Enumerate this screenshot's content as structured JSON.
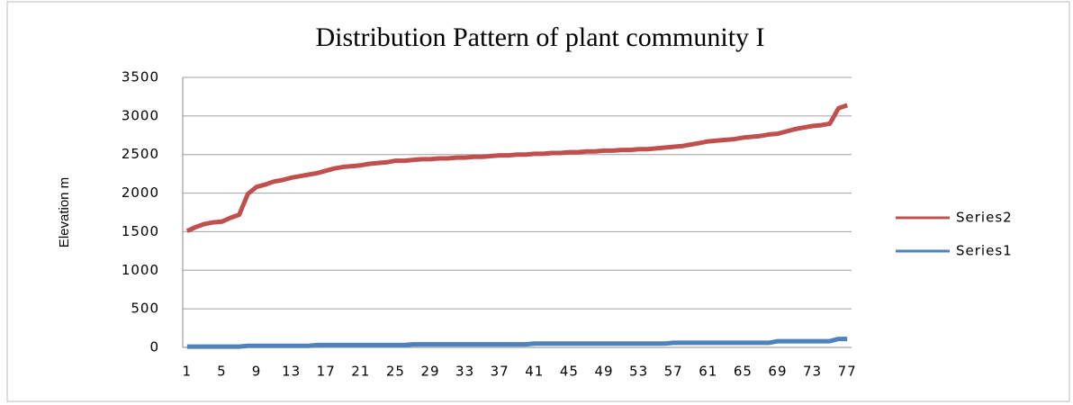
{
  "chart_data": {
    "type": "line",
    "title": "Distribution Pattern of plant community I",
    "y_label": "Elevation m",
    "categories": [
      "1",
      null,
      null,
      null,
      "5",
      null,
      null,
      null,
      "9",
      null,
      null,
      null,
      "13",
      null,
      null,
      null,
      "17",
      null,
      null,
      null,
      "21",
      null,
      null,
      null,
      "25",
      null,
      null,
      null,
      "29",
      null,
      null,
      null,
      "33",
      null,
      null,
      null,
      "37",
      null,
      null,
      null,
      "41",
      null,
      null,
      null,
      "45",
      null,
      null,
      null,
      "49",
      null,
      null,
      null,
      "53",
      null,
      null,
      null,
      "57",
      null,
      null,
      null,
      "61",
      null,
      null,
      null,
      "65",
      null,
      null,
      null,
      "69",
      null,
      null,
      null,
      "73",
      null,
      null,
      null,
      "77"
    ],
    "series": [
      {
        "name": "Series2",
        "color": "#c0504d",
        "values": [
          1510,
          1560,
          1600,
          1620,
          1630,
          1680,
          1720,
          1990,
          2080,
          2110,
          2150,
          2170,
          2200,
          2220,
          2240,
          2260,
          2290,
          2320,
          2340,
          2350,
          2360,
          2380,
          2390,
          2400,
          2420,
          2420,
          2430,
          2440,
          2440,
          2450,
          2450,
          2460,
          2460,
          2470,
          2470,
          2480,
          2490,
          2490,
          2500,
          2500,
          2510,
          2510,
          2520,
          2520,
          2530,
          2530,
          2540,
          2540,
          2550,
          2550,
          2560,
          2560,
          2570,
          2570,
          2580,
          2590,
          2600,
          2610,
          2630,
          2650,
          2670,
          2680,
          2690,
          2700,
          2720,
          2730,
          2740,
          2760,
          2770,
          2800,
          2830,
          2850,
          2870,
          2880,
          2900,
          3100,
          3140
        ]
      },
      {
        "name": "Series1",
        "color": "#4f81bd",
        "values": [
          10,
          10,
          10,
          10,
          10,
          10,
          10,
          20,
          20,
          20,
          20,
          20,
          20,
          20,
          20,
          30,
          30,
          30,
          30,
          30,
          30,
          30,
          30,
          30,
          30,
          30,
          40,
          40,
          40,
          40,
          40,
          40,
          40,
          40,
          40,
          40,
          40,
          40,
          40,
          40,
          50,
          50,
          50,
          50,
          50,
          50,
          50,
          50,
          50,
          50,
          50,
          50,
          50,
          50,
          50,
          50,
          60,
          60,
          60,
          60,
          60,
          60,
          60,
          60,
          60,
          60,
          60,
          60,
          80,
          80,
          80,
          80,
          80,
          80,
          80,
          110,
          110
        ]
      }
    ],
    "ylim": [
      0,
      3500
    ],
    "yticks": [
      0,
      500,
      1000,
      1500,
      2000,
      2500,
      3000,
      3500
    ],
    "grid": true,
    "legend": "right"
  }
}
